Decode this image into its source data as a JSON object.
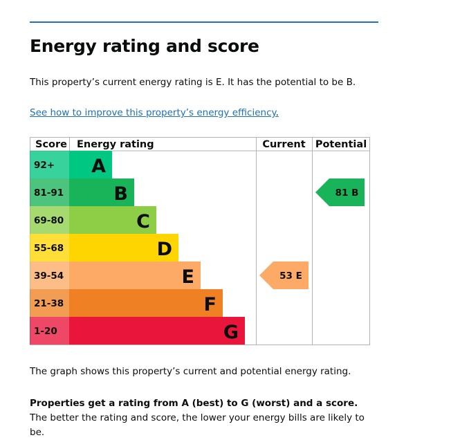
{
  "heading": "Energy rating and score",
  "intro": "This property’s current energy rating is E. It has the potential to be B.",
  "link_text": "See how to improve this property’s energy efficiency",
  "link_suffix": ".",
  "chart_data": {
    "type": "table",
    "columns": [
      "Score",
      "Energy rating",
      "Current",
      "Potential"
    ],
    "bands": [
      {
        "band": "A",
        "range": "92+",
        "color": "#00c781"
      },
      {
        "band": "B",
        "range": "81-91",
        "color": "#19b459"
      },
      {
        "band": "C",
        "range": "69-80",
        "color": "#8dce46"
      },
      {
        "band": "D",
        "range": "55-68",
        "color": "#ffd500"
      },
      {
        "band": "E",
        "range": "39-54",
        "color": "#fcaa65"
      },
      {
        "band": "F",
        "range": "21-38",
        "color": "#ef8023"
      },
      {
        "band": "G",
        "range": "1-20",
        "color": "#e9153b"
      }
    ],
    "current": {
      "score": 53,
      "band": "E",
      "label": "53 E",
      "color": "#fcaa65"
    },
    "potential": {
      "score": 81,
      "band": "B",
      "label": "81 B",
      "color": "#19b459"
    }
  },
  "caption": "The graph shows this property’s current and potential energy rating.",
  "explain_bold": "Properties get a rating from A (best) to G (worst) and a score.",
  "explain_rest": " The better the rating and score, the lower your energy bills are likely to be."
}
